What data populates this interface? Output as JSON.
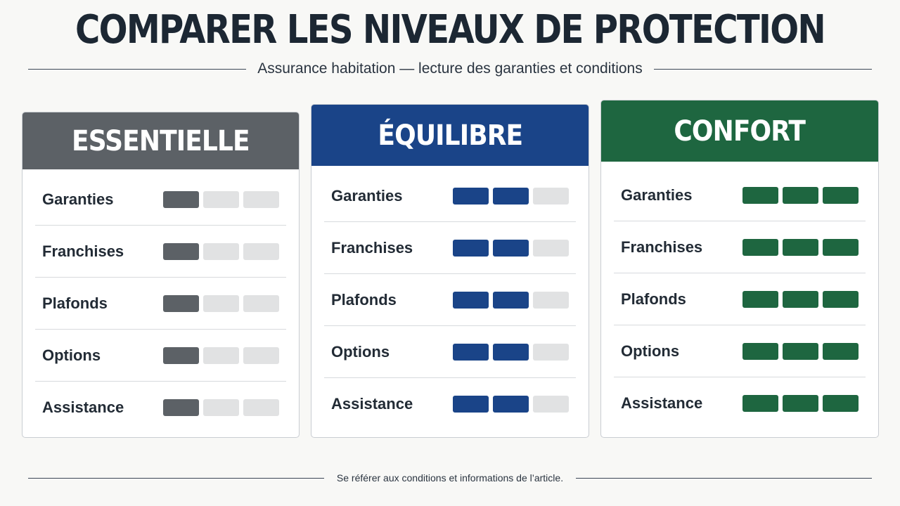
{
  "page": {
    "title": "COMPARER LES NIVEAUX DE PROTECTION",
    "subtitle": "Assurance habitation — lecture des garanties et conditions",
    "footer": "Se référer aux conditions et informations de l’article."
  },
  "tiers": [
    {
      "name": "ESSENTIELLE",
      "color": "#5c6166",
      "rows": [
        {
          "label": "Garanties",
          "level": 1
        },
        {
          "label": "Franchises",
          "level": 1
        },
        {
          "label": "Plafonds",
          "level": 1
        },
        {
          "label": "Options",
          "level": 1
        },
        {
          "label": "Assistance",
          "level": 1
        }
      ]
    },
    {
      "name": "ÉQUILIBRE",
      "color": "#1a4488",
      "rows": [
        {
          "label": "Garanties",
          "level": 2
        },
        {
          "label": "Franchises",
          "level": 2
        },
        {
          "label": "Plafonds",
          "level": 2
        },
        {
          "label": "Options",
          "level": 2
        },
        {
          "label": "Assistance",
          "level": 2
        }
      ]
    },
    {
      "name": "CONFORT",
      "color": "#1e6640",
      "rows": [
        {
          "label": "Garanties",
          "level": 3
        },
        {
          "label": "Franchises",
          "level": 3
        },
        {
          "label": "Plafonds",
          "level": 3
        },
        {
          "label": "Options",
          "level": 3
        },
        {
          "label": "Assistance",
          "level": 3
        }
      ]
    }
  ],
  "scale_max": 3,
  "empty_color": "#e1e2e3"
}
